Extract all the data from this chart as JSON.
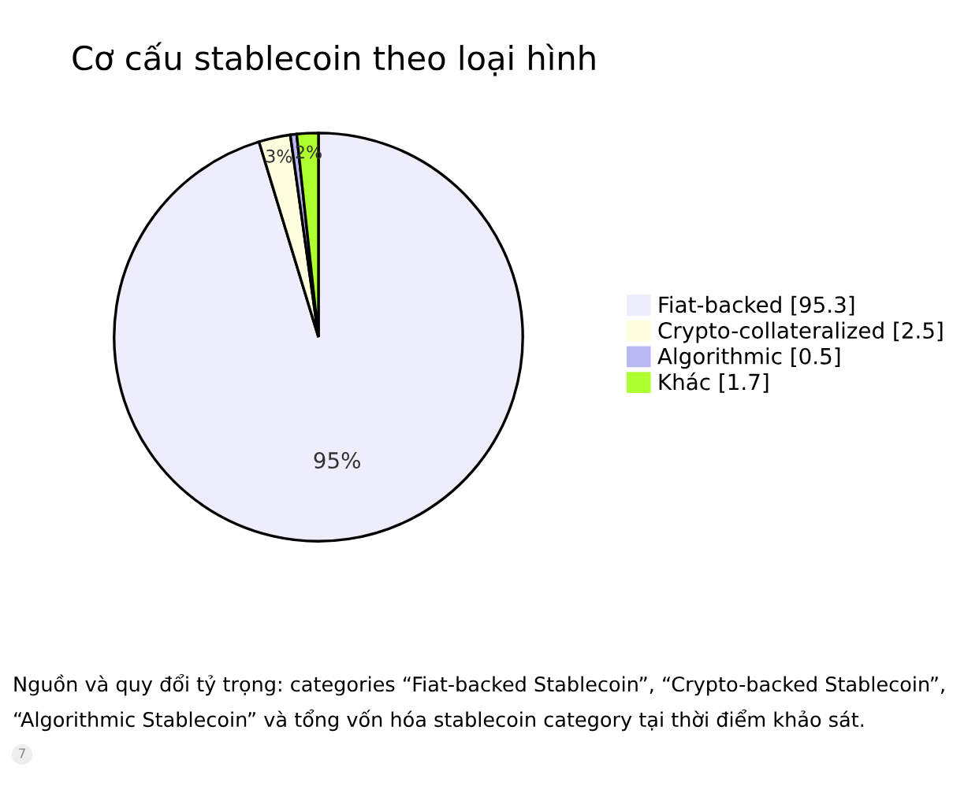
{
  "chart_data": {
    "type": "pie",
    "title": "Cơ cấu stablecoin theo loại hình",
    "categories": [
      "Fiat-backed [95.3]",
      "Crypto-collateralized [2.5]",
      "Algorithmic [0.5]",
      "Khác [1.7]"
    ],
    "values": [
      95.3,
      2.5,
      0.5,
      1.7
    ],
    "colors": [
      "#ededfb",
      "#ffffe0",
      "#b9b9f2",
      "#adff2f"
    ],
    "value_labels": [
      "95%",
      "3%",
      null,
      "2%"
    ],
    "legend": "right",
    "annotations": [
      "Nguồn và quy đổi tỷ trọng: categories “Fiat-backed Stablecoin”, “Crypto-backed Stablecoin”, “Algorithmic Stablecoin” và tổng vốn hóa stablecoin category tại thời điểm khảo sát.",
      "7"
    ]
  }
}
